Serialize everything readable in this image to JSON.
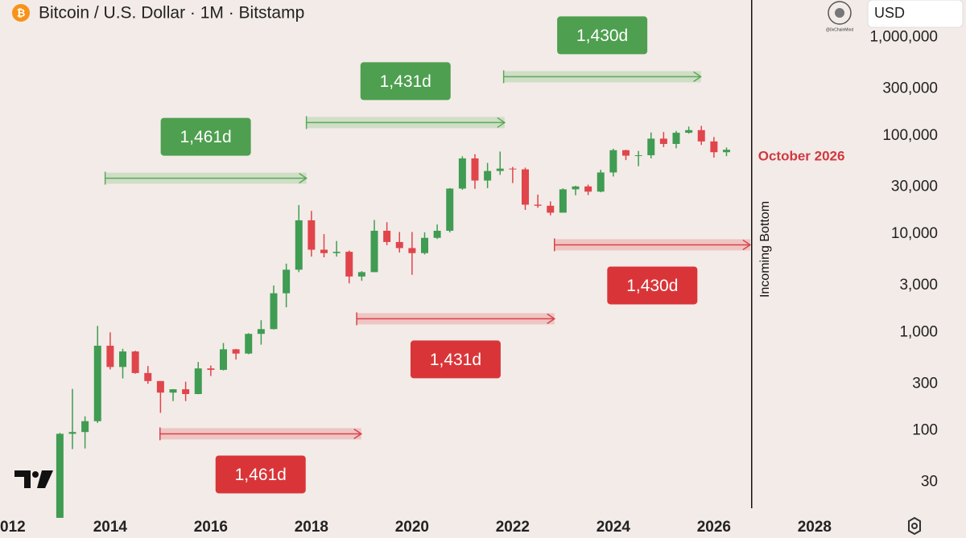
{
  "header": {
    "title": "Bitcoin / U.S. Dollar · 1M · Bitstamp",
    "currency": "USD",
    "watermark": "@0xChainMind"
  },
  "chart_data": {
    "type": "candlestick",
    "log_scale": true,
    "x": [
      2013.0,
      2013.25,
      2013.5,
      2013.75,
      2014.0,
      2014.25,
      2014.5,
      2014.75,
      2015.0,
      2015.25,
      2015.5,
      2015.75,
      2016.0,
      2016.25,
      2016.5,
      2016.75,
      2017.0,
      2017.25,
      2017.5,
      2017.75,
      2018.0,
      2018.25,
      2018.5,
      2018.75,
      2019.0,
      2019.25,
      2019.5,
      2019.75,
      2020.0,
      2020.25,
      2020.5,
      2020.75,
      2021.0,
      2021.25,
      2021.5,
      2021.75,
      2022.0,
      2022.25,
      2022.5,
      2022.75,
      2023.0,
      2023.25,
      2023.5,
      2023.75,
      2024.0,
      2024.25,
      2024.5,
      2024.75,
      2025.0,
      2025.25,
      2025.5,
      2025.75,
      2026.0,
      2026.25
    ],
    "open": [
      13,
      93,
      97,
      125,
      732,
      445,
      640,
      386,
      320,
      244,
      264,
      236,
      430,
      416,
      673,
      609,
      966,
      1080,
      2500,
      4340,
      13800,
      6930,
      6400,
      6600,
      3700,
      4100,
      10800,
      8300,
      7200,
      6400,
      9150,
      10800,
      29000,
      58800,
      35000,
      43800,
      46300,
      45500,
      19900,
      19400,
      16500,
      28500,
      30500,
      27000,
      42300,
      71300,
      62700,
      63300,
      93400,
      82500,
      107200,
      114000,
      87500,
      68000
    ],
    "high": [
      95,
      266,
      140,
      1163,
      1000,
      680,
      650,
      455,
      320,
      265,
      315,
      500,
      460,
      780,
      680,
      980,
      1330,
      3000,
      5000,
      19700,
      17200,
      9990,
      8500,
      6800,
      4200,
      13900,
      13200,
      10500,
      10500,
      10400,
      12500,
      29300,
      61800,
      64900,
      52900,
      69000,
      48200,
      47400,
      25200,
      21500,
      29200,
      31000,
      31800,
      45000,
      73800,
      72000,
      70000,
      108000,
      109000,
      111900,
      124000,
      126000,
      97000,
      76000
    ],
    "low": [
      13,
      65,
      66,
      120,
      420,
      340,
      380,
      300,
      152,
      200,
      200,
      235,
      360,
      410,
      530,
      600,
      750,
      1070,
      1800,
      4100,
      5900,
      5800,
      5900,
      3150,
      3350,
      4100,
      7700,
      6500,
      3850,
      6200,
      8900,
      10400,
      28200,
      28800,
      29300,
      40000,
      33000,
      17600,
      18500,
      15500,
      16500,
      24800,
      24900,
      26600,
      38500,
      56500,
      49000,
      58900,
      76600,
      74500,
      105000,
      80600,
      60000,
      62000
    ],
    "close": [
      93,
      97,
      125,
      732,
      445,
      640,
      386,
      320,
      244,
      264,
      236,
      430,
      416,
      673,
      609,
      966,
      1080,
      2500,
      4340,
      13800,
      6930,
      6400,
      6600,
      3700,
      4100,
      10800,
      8300,
      7200,
      6400,
      9150,
      10800,
      29000,
      58800,
      35000,
      43800,
      46300,
      45500,
      19900,
      19400,
      16500,
      28500,
      30500,
      27000,
      42300,
      71300,
      62700,
      63300,
      93400,
      82500,
      107200,
      114000,
      87500,
      68000,
      72000
    ],
    "up_color": "#3f9c52",
    "down_color": "#e0454b",
    "xlim": [
      2011.81,
      2028.93
    ],
    "ylim": [
      14,
      2400000
    ],
    "xticks": [
      {
        "value": 2012,
        "label": "012"
      },
      2014,
      2016,
      2018,
      2020,
      2022,
      2024,
      2026,
      2028
    ],
    "yticks": [
      30,
      100,
      300,
      {
        "value": 1000,
        "label": "1,000"
      },
      {
        "value": 3000,
        "label": "3,000"
      },
      {
        "value": 10000,
        "label": "10,000"
      },
      {
        "value": 30000,
        "label": "30,000"
      },
      {
        "value": 100000,
        "label": "100,000"
      },
      {
        "value": 300000,
        "label": "300,000"
      },
      {
        "value": 1000000,
        "label": "1,000,000"
      }
    ],
    "ranges": [
      {
        "label": "1,461d",
        "x0": 2013.9,
        "x1": 2017.9,
        "y": 37000,
        "color": "green"
      },
      {
        "label": "1,431d",
        "x0": 2017.9,
        "x1": 2021.84,
        "y": 136000,
        "color": "green"
      },
      {
        "label": "1,430d",
        "x0": 2021.82,
        "x1": 2025.74,
        "y": 398000,
        "color": "green"
      },
      {
        "label": "1,461d",
        "x0": 2014.99,
        "x1": 2018.99,
        "y": 93,
        "color": "red"
      },
      {
        "label": "1,431d",
        "x0": 2018.9,
        "x1": 2022.83,
        "y": 1375,
        "color": "red"
      },
      {
        "label": "1,430d",
        "x0": 2022.83,
        "x1": 2026.72,
        "y": 7770,
        "color": "red"
      }
    ],
    "marker": {
      "x": 2026.75,
      "label": "Incoming Bottom",
      "date_label": "October 2026"
    }
  }
}
